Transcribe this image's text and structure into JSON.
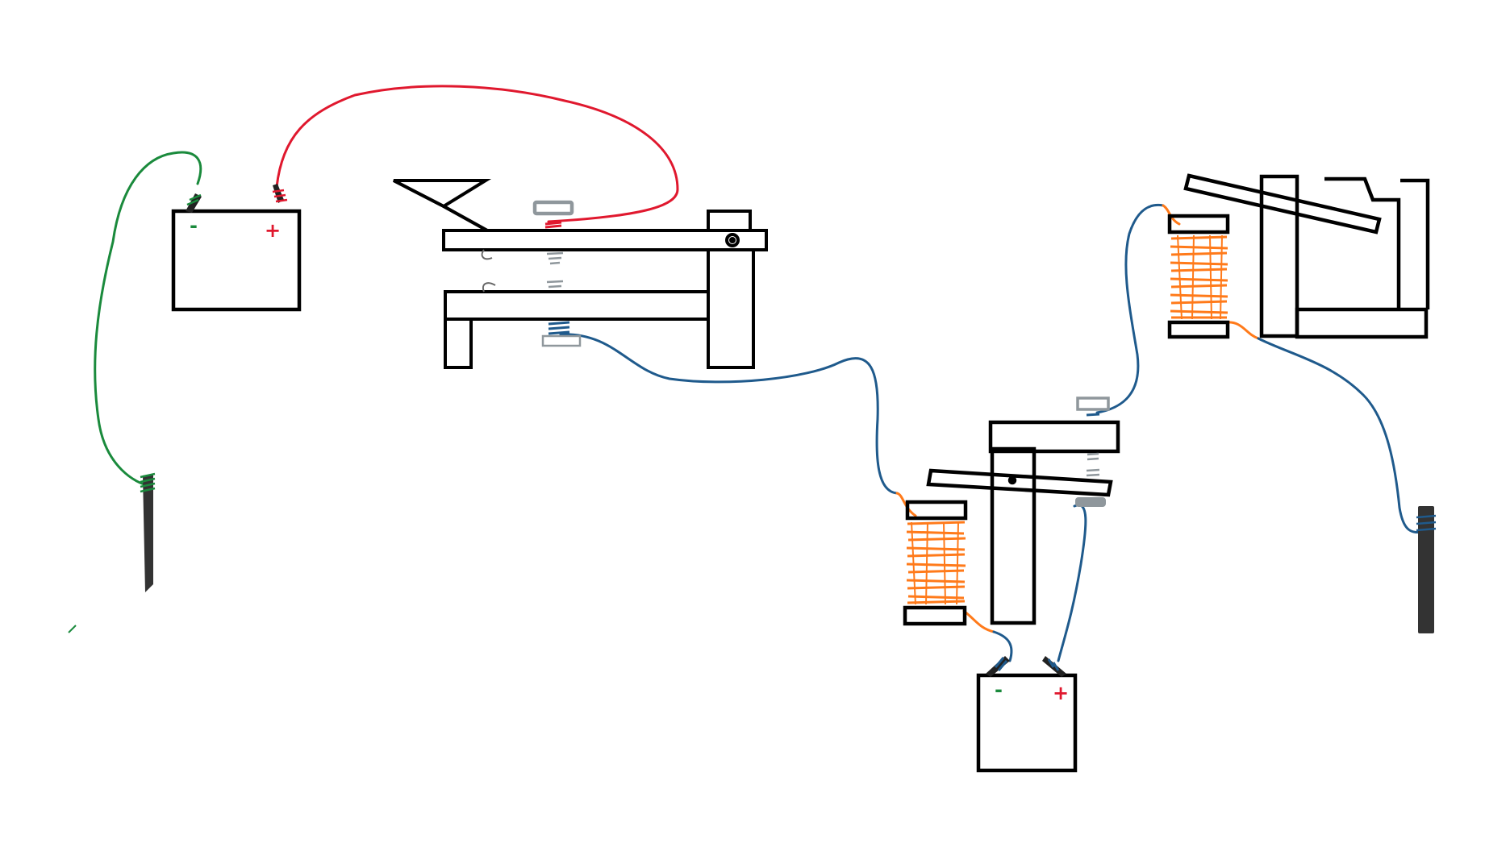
{
  "battery_left": {
    "neg_symbol": "-",
    "pos_symbol": "+"
  },
  "battery_right": {
    "neg_symbol": "-",
    "pos_symbol": "+"
  },
  "colors": {
    "outline": "#000000",
    "wire_green": "#1a8a3c",
    "wire_red": "#e0182e",
    "wire_blue": "#1f5a8c",
    "coil_orange": "#ff7a1a",
    "contact_gray": "#8f979c",
    "ground_rod": "#333333"
  },
  "icons": {
    "ground_rod_left": "ground-rod-icon",
    "ground_rod_right": "ground-rod-icon",
    "telegraph_key": "telegraph-key-icon",
    "relay": "relay-icon",
    "sounder": "sounder-icon"
  }
}
